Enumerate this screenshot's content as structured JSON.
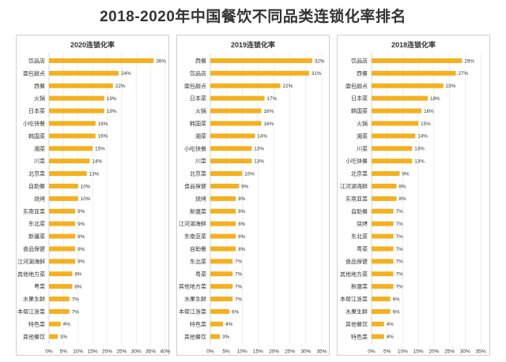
{
  "title": "2018-2020年中国餐饮不同品类连锁化率排名",
  "colors": {
    "bar": "#F5B01E",
    "grid": "#e3e3e3",
    "axis": "#bbbbbb",
    "text": "#333333"
  },
  "chart_data": [
    {
      "type": "bar",
      "orientation": "horizontal",
      "title": "2020连锁化率",
      "categories": [
        "饮品店",
        "面包甜点",
        "西餐",
        "火锅",
        "日本菜",
        "小吃快餐",
        "韩国菜",
        "湘菜",
        "川菜",
        "北京菜",
        "自助餐",
        "烧烤",
        "东南亚菜",
        "东北菜",
        "新疆菜",
        "食品保健",
        "江河湖海鲜",
        "其他地方菜",
        "粤菜",
        "水果生鲜",
        "本帮江浙菜",
        "特色菜",
        "其他餐饮"
      ],
      "values": [
        36,
        24,
        22,
        19,
        19,
        16,
        16,
        15,
        14,
        13,
        10,
        10,
        9,
        9,
        9,
        9,
        9,
        8,
        8,
        7,
        7,
        4,
        3
      ],
      "value_labels": [
        "36%",
        "24%",
        "22%",
        "19%",
        "19%",
        "16%",
        "16%",
        "15%",
        "14%",
        "13%",
        "10%",
        "10%",
        "9%",
        "9%",
        "9%",
        "9%",
        "9%",
        "8%",
        "8%",
        "7%",
        "7%",
        "4%",
        "3%"
      ],
      "xlim": [
        0,
        40
      ],
      "xticks": [
        "0%",
        "5%",
        "10%",
        "15%",
        "20%",
        "25%",
        "30%",
        "35%",
        "40%"
      ],
      "grid": true
    },
    {
      "type": "bar",
      "orientation": "horizontal",
      "title": "2019连锁化率",
      "categories": [
        "西餐",
        "饮品店",
        "面包甜点",
        "日本菜",
        "火锅",
        "韩国菜",
        "湘菜",
        "小吃快餐",
        "川菜",
        "北京菜",
        "食品保健",
        "烧烤",
        "新疆菜",
        "江河湖海鲜",
        "东南亚菜",
        "自助餐",
        "东北菜",
        "粤菜",
        "其他地方菜",
        "水果生鲜",
        "本帮江浙菜",
        "特色菜",
        "其他餐饮"
      ],
      "values": [
        32,
        31,
        22,
        17,
        16,
        16,
        14,
        13,
        13,
        10,
        9,
        8,
        8,
        8,
        8,
        8,
        7,
        7,
        7,
        7,
        6,
        4,
        3
      ],
      "value_labels": [
        "32%",
        "31%",
        "22%",
        "17%",
        "16%",
        "16%",
        "14%",
        "13%",
        "13%",
        "10%",
        "9%",
        "8%",
        "8%",
        "8%",
        "8%",
        "8%",
        "7%",
        "7%",
        "7%",
        "7%",
        "6%",
        "4%",
        "3%"
      ],
      "xlim": [
        0,
        35
      ],
      "xticks": [
        "0%",
        "5%",
        "10%",
        "15%",
        "20%",
        "25%",
        "30%",
        "35%"
      ],
      "grid": true
    },
    {
      "type": "bar",
      "orientation": "horizontal",
      "title": "2018连锁化率",
      "categories": [
        "饮品店",
        "西餐",
        "面包甜点",
        "日本菜",
        "韩国菜",
        "火锅",
        "湘菜",
        "川菜",
        "小吃快餐",
        "北京菜",
        "江河湖海鲜",
        "东南亚菜",
        "自助餐",
        "烧烤",
        "东北菜",
        "粤菜",
        "食品保健",
        "其他地方菜",
        "新疆菜",
        "本帮江浙菜",
        "水果生鲜",
        "其他餐饮",
        "特色菜"
      ],
      "values": [
        29,
        27,
        23,
        18,
        16,
        15,
        14,
        13,
        13,
        9,
        8,
        8,
        7,
        7,
        7,
        7,
        7,
        7,
        7,
        6,
        6,
        4,
        4
      ],
      "value_labels": [
        "29%",
        "27%",
        "23%",
        "18%",
        "16%",
        "15%",
        "14%",
        "13%",
        "13%",
        "9%",
        "8%",
        "8%",
        "7%",
        "7%",
        "7%",
        "7%",
        "7%",
        "7%",
        "7%",
        "6%",
        "6%",
        "4%",
        "4%"
      ],
      "xlim": [
        0,
        35
      ],
      "xticks": [
        "0%",
        "5%",
        "10%",
        "15%",
        "20%",
        "25%",
        "30%",
        "35%"
      ],
      "grid": true
    }
  ]
}
